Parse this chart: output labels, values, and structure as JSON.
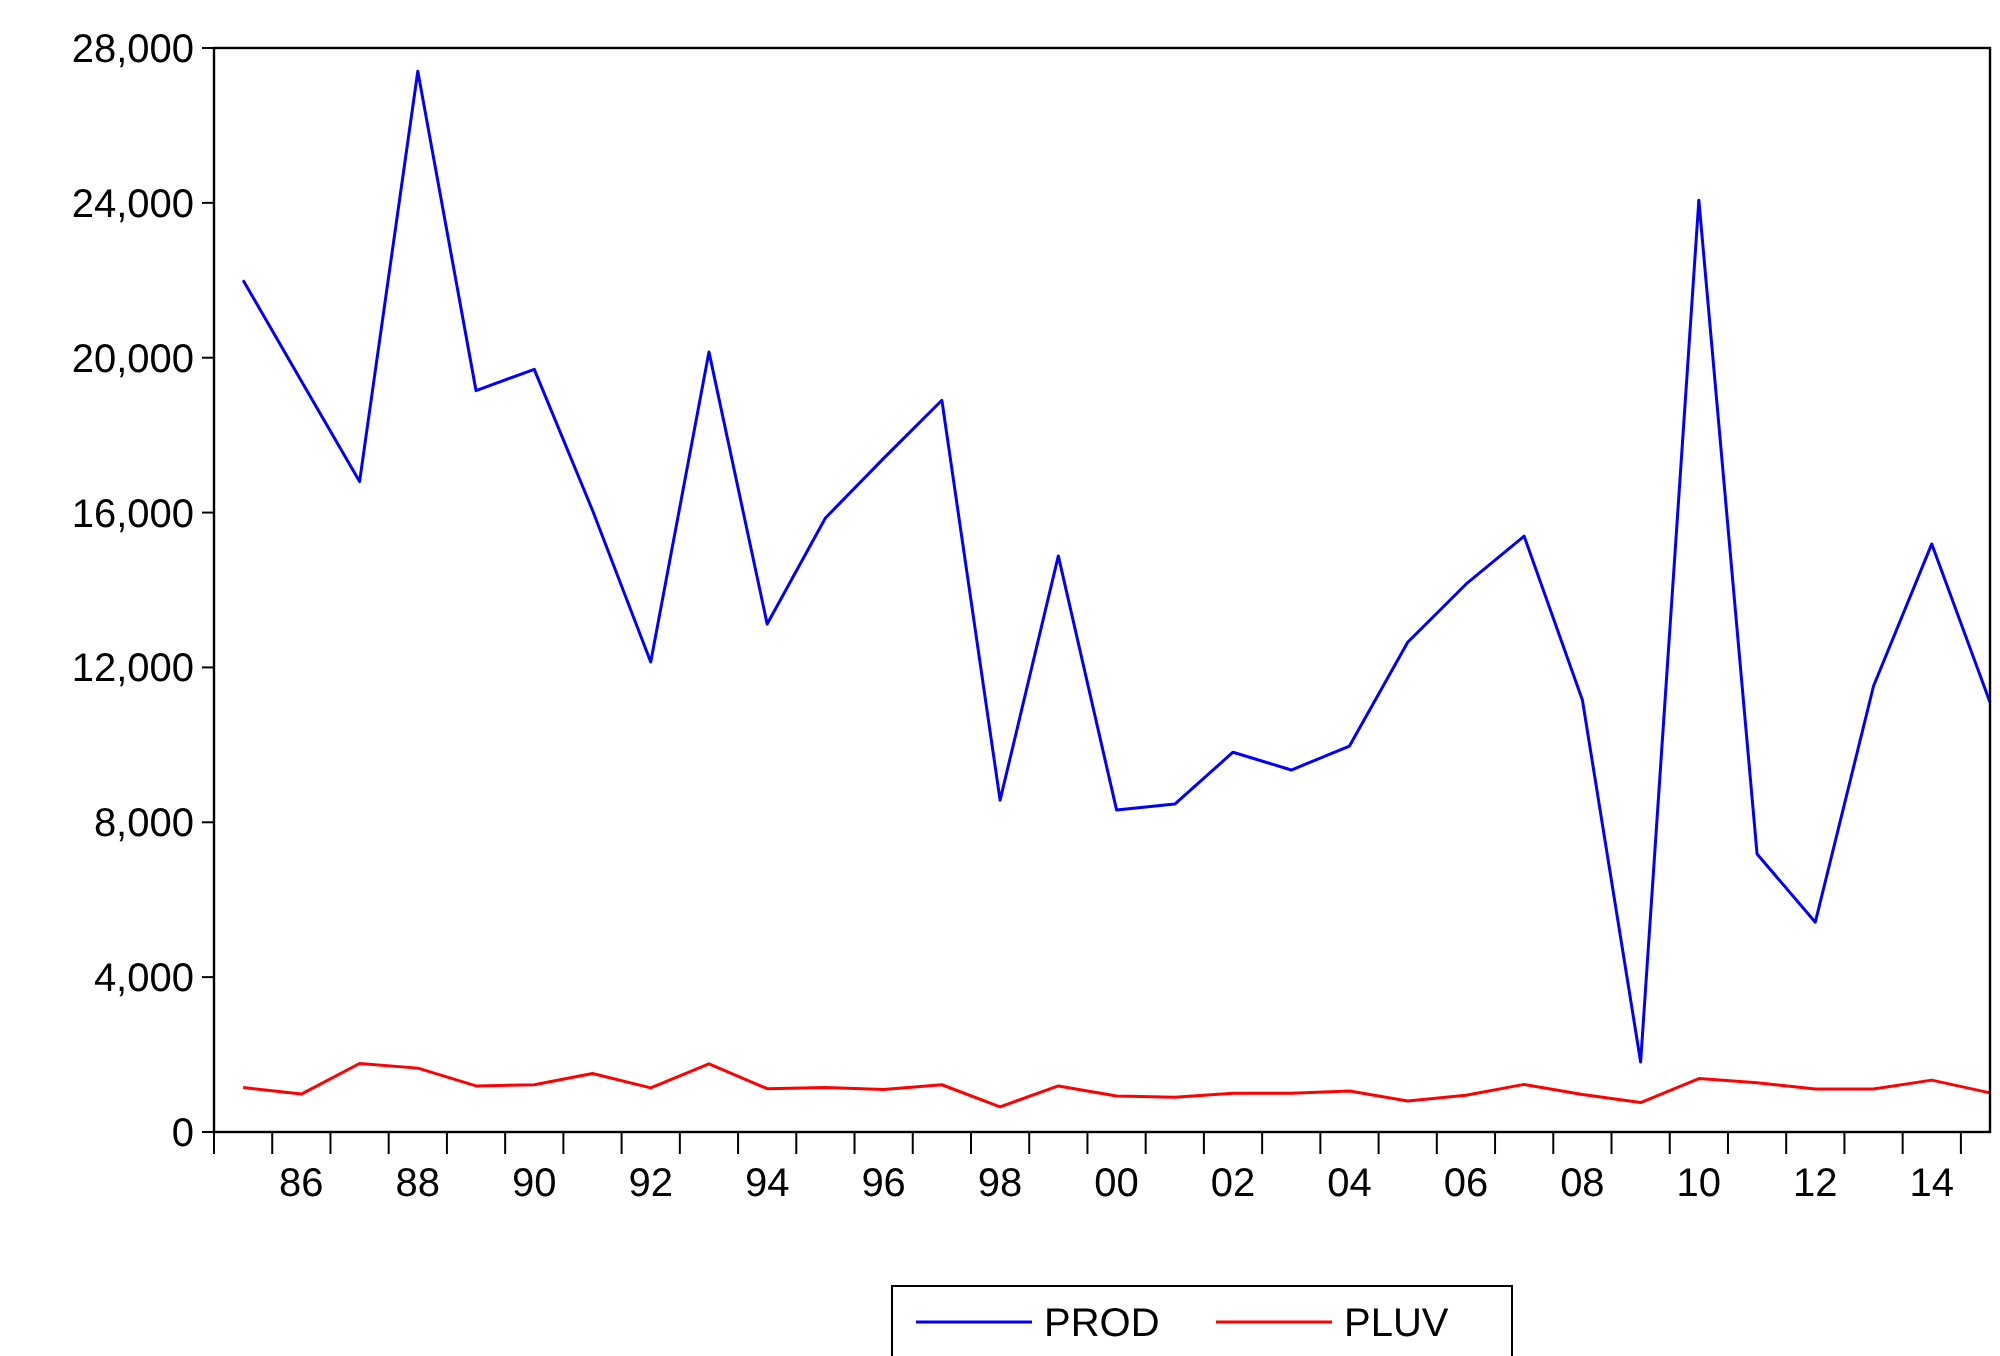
{
  "chart_data": {
    "type": "line",
    "categories": [
      null,
      "86",
      null,
      "88",
      null,
      "90",
      null,
      "92",
      null,
      "94",
      null,
      "96",
      null,
      "98",
      null,
      "00",
      null,
      "02",
      null,
      "04",
      null,
      "06",
      null,
      "08",
      null,
      "10",
      null,
      "12",
      null,
      "14",
      null
    ],
    "series": [
      {
        "name": "PROD",
        "color": "#0000ff",
        "values": [
          22000,
          19400,
          16800,
          27400,
          19150,
          19700,
          16060,
          12140,
          20150,
          13120,
          15860,
          17400,
          18900,
          8570,
          14880,
          8320,
          8470,
          9810,
          9350,
          9970,
          12650,
          14150,
          15390,
          11160,
          1810,
          24070,
          7180,
          5420,
          11520,
          15190,
          11100
        ]
      },
      {
        "name": "PLUV",
        "color": "#ff0000",
        "values": [
          1150,
          980,
          1770,
          1650,
          1190,
          1220,
          1510,
          1140,
          1760,
          1120,
          1150,
          1100,
          1220,
          650,
          1190,
          930,
          900,
          1000,
          1000,
          1060,
          800,
          950,
          1230,
          970,
          760,
          1380,
          1270,
          1110,
          1110,
          1340,
          1010
        ]
      }
    ],
    "ylim": [
      0,
      28000
    ],
    "yticks": [
      {
        "value": 0,
        "label": "0"
      },
      {
        "value": 4000,
        "label": "4,000"
      },
      {
        "value": 8000,
        "label": "8,000"
      },
      {
        "value": 12000,
        "label": "12,000"
      },
      {
        "value": 16000,
        "label": "16,000"
      },
      {
        "value": 20000,
        "label": "20,000"
      },
      {
        "value": 24000,
        "label": "24,000"
      },
      {
        "value": 28000,
        "label": "28,000"
      }
    ],
    "grid": false,
    "legend": "bottom",
    "line_style": "solid"
  }
}
